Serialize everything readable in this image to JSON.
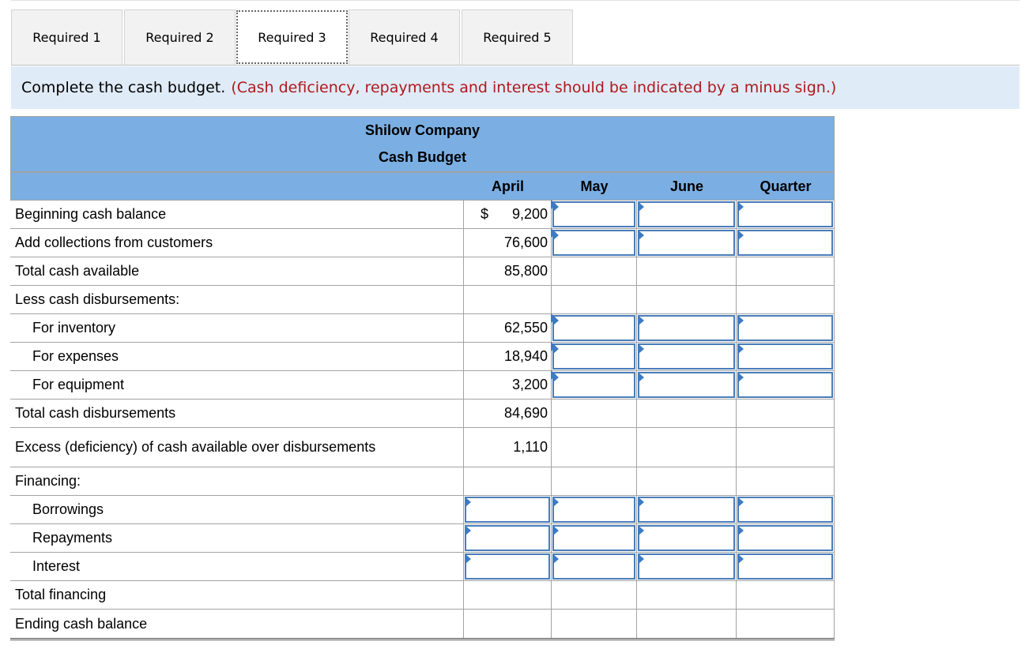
{
  "tabs": [
    "Required 1",
    "Required 2",
    "Required 3",
    "Required 4",
    "Required 5"
  ],
  "active_tab": 2,
  "instruction": {
    "text": "Complete the cash budget.",
    "note": "(Cash deficiency, repayments and interest should be indicated by a minus sign.)"
  },
  "budget": {
    "company": "Shilow Company",
    "title": "Cash Budget",
    "columns": [
      "April",
      "May",
      "June",
      "Quarter"
    ],
    "currency_symbol": "$",
    "rows": [
      {
        "label": "Beginning cash balance",
        "april": "9,200"
      },
      {
        "label": "Add collections from customers",
        "april": "76,600"
      },
      {
        "label": "Total cash available",
        "april": "85,800"
      },
      {
        "label": "Less cash disbursements:",
        "april": ""
      },
      {
        "label": "For inventory",
        "april": "62,550"
      },
      {
        "label": "For expenses",
        "april": "18,940"
      },
      {
        "label": "For equipment",
        "april": "3,200"
      },
      {
        "label": "Total cash disbursements",
        "april": "84,690"
      },
      {
        "label": "Excess (deficiency) of cash available over disbursements",
        "april": "1,110"
      },
      {
        "label": "Financing:",
        "april": ""
      },
      {
        "label": "Borrowings",
        "april": ""
      },
      {
        "label": "Repayments",
        "april": ""
      },
      {
        "label": "Interest",
        "april": ""
      },
      {
        "label": "Total financing",
        "april": ""
      },
      {
        "label": "Ending cash balance",
        "april": ""
      }
    ]
  }
}
